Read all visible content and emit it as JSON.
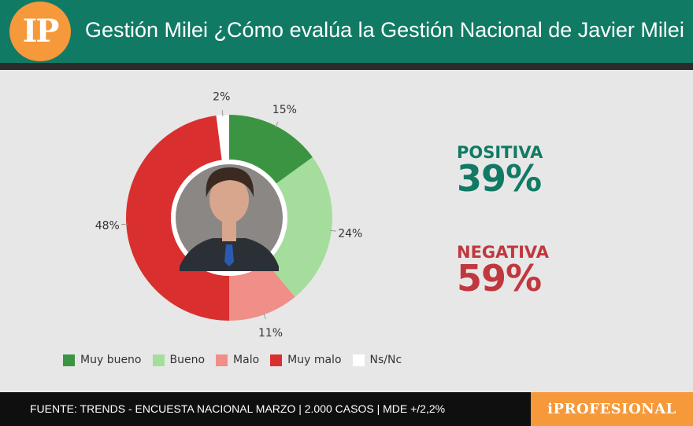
{
  "header": {
    "logo_text": "IP",
    "title": "Gestión Milei ¿Cómo evalúa la Gestión Nacional de Javier Milei"
  },
  "summary": {
    "positive_label": "POSITIVA",
    "positive_value": "39%",
    "negative_label": "NEGATIVA",
    "negative_value": "59%",
    "positive_color": "#117a65",
    "negative_color": "#c1373e"
  },
  "chart_data": {
    "type": "pie",
    "variant": "donut",
    "categories": [
      "Muy bueno",
      "Bueno",
      "Malo",
      "Muy malo",
      "Ns/Nc"
    ],
    "values": [
      15,
      24,
      11,
      48,
      2
    ],
    "labels": [
      "15%",
      "24%",
      "11%",
      "48%",
      "2%"
    ],
    "colors": [
      "#3b9442",
      "#a5dd9d",
      "#ef8f88",
      "#d9302f",
      "#ffffff"
    ],
    "center_image": "portrait-photo",
    "legend_position": "bottom-left"
  },
  "footer": {
    "source": "FUENTE: TRENDS - ENCUESTA NACIONAL MARZO | 2.000 CASOS | MDE +/2,2%",
    "brand": "iPROFESIONAL"
  }
}
